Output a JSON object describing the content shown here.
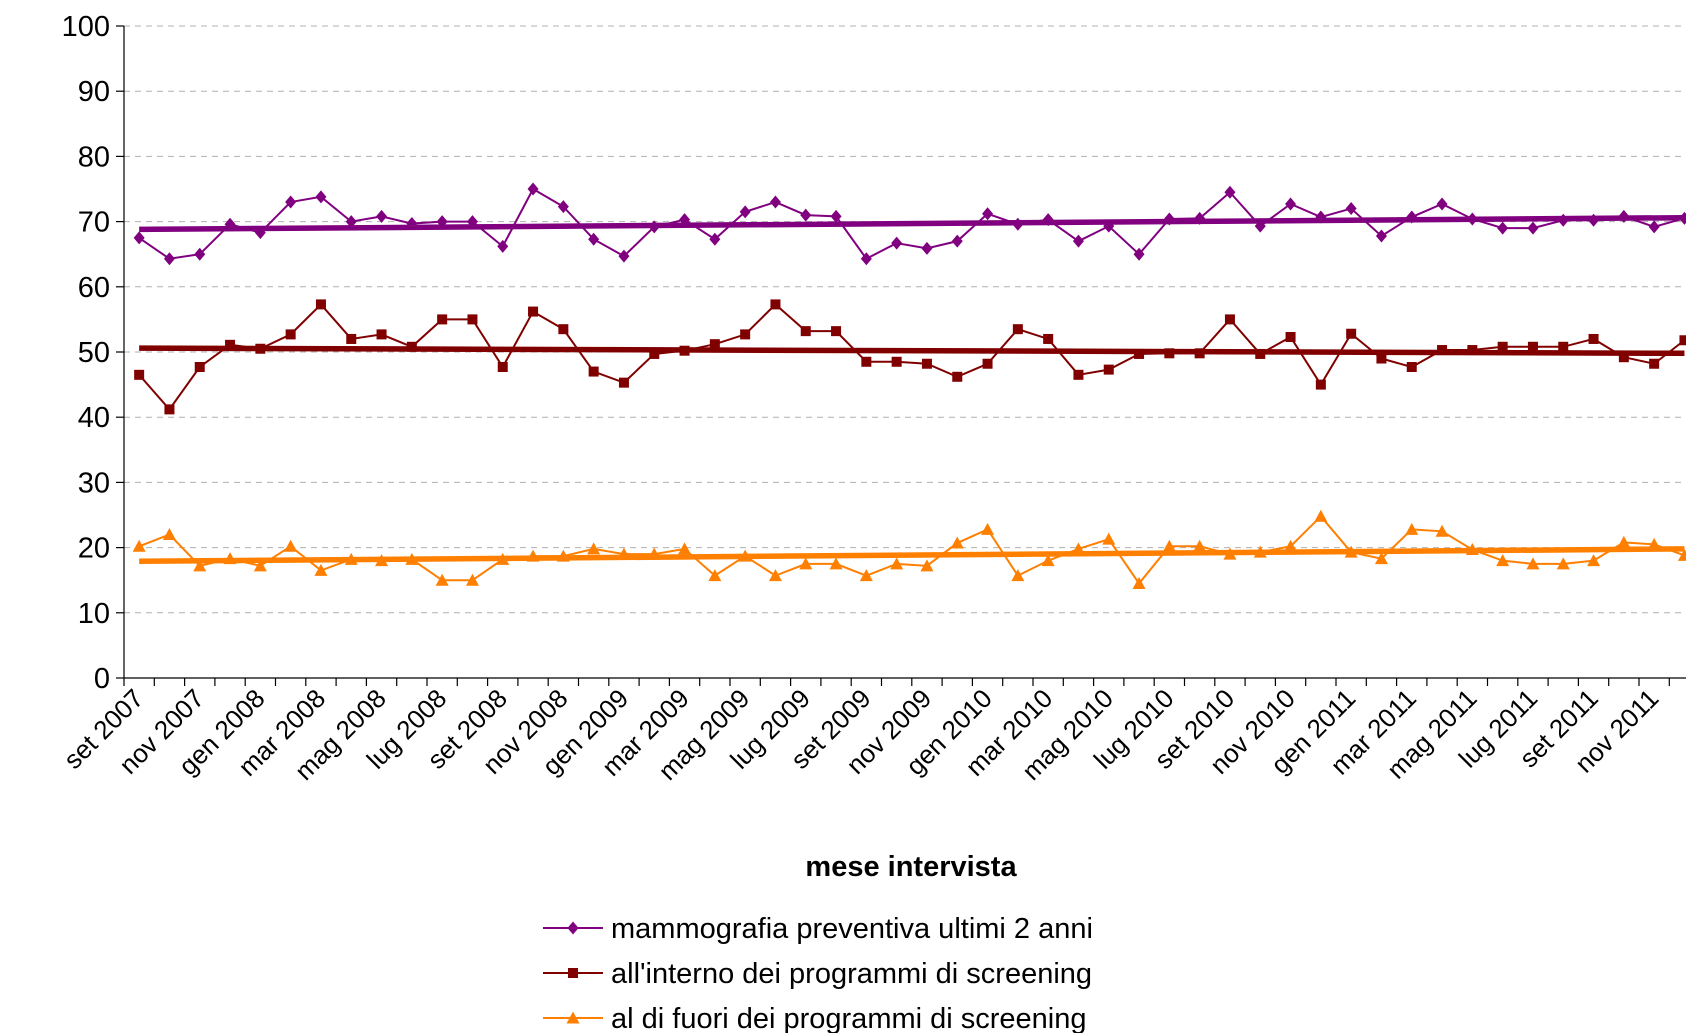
{
  "chart_data": {
    "type": "line",
    "x_label": "mese intervista",
    "categories": [
      "set 2007",
      null,
      "nov 2007",
      null,
      "gen 2008",
      null,
      "mar 2008",
      null,
      "mag 2008",
      null,
      "lug 2008",
      null,
      "set 2008",
      null,
      "nov 2008",
      null,
      "gen 2009",
      null,
      "mar 2009",
      null,
      "mag 2009",
      null,
      "lug 2009",
      null,
      "set 2009",
      null,
      "nov 2009",
      null,
      "gen 2010",
      null,
      "mar 2010",
      null,
      "mag 2010",
      null,
      "lug 2010",
      null,
      "set 2010",
      null,
      "nov 2010",
      null,
      "gen 2011",
      null,
      "mar 2011",
      null,
      "mag 2011",
      null,
      "lug 2011",
      null,
      "set 2011",
      null,
      "nov 2011",
      null
    ],
    "series": [
      {
        "name": "mammografia preventiva ultimi 2 anni",
        "color": "#800080",
        "marker": "diamond",
        "values": [
          67.5,
          64.3,
          65,
          69.6,
          68.3,
          73,
          73.8,
          70,
          70.8,
          69.7,
          70,
          70,
          66.2,
          75,
          72.3,
          67.3,
          64.7,
          69.2,
          70.3,
          67.3,
          71.5,
          73,
          71,
          70.8,
          64.3,
          66.7,
          65.9,
          67,
          71.2,
          69.6,
          70.3,
          67,
          69.3,
          65,
          70.4,
          70.5,
          74.5,
          69.3,
          72.7,
          70.7,
          72,
          67.8,
          70.7,
          72.7,
          70.4,
          69,
          69,
          70.2,
          70.2,
          70.8,
          69.2,
          70.5
        ],
        "trend": [
          68.8,
          70.6
        ]
      },
      {
        "name": "all'interno dei programmi di screening",
        "color": "#800000",
        "marker": "square",
        "values": [
          46.5,
          41.2,
          47.7,
          51.1,
          50.5,
          52.7,
          57.3,
          52,
          52.7,
          50.8,
          55,
          55,
          47.7,
          56.2,
          53.5,
          47,
          45.3,
          49.7,
          50.2,
          51.2,
          52.7,
          57.3,
          53.2,
          53.2,
          48.5,
          48.5,
          48.2,
          46.2,
          48.2,
          53.5,
          52,
          46.5,
          47.3,
          49.7,
          49.8,
          49.8,
          55,
          49.7,
          52.3,
          45,
          52.8,
          49,
          47.7,
          50.3,
          50.3,
          50.8,
          50.8,
          50.8,
          52,
          49.2,
          48.2,
          51.8
        ],
        "trend": [
          50.6,
          49.8
        ]
      },
      {
        "name": "al di fuori dei programmi di screening",
        "color": "#ff7f00",
        "marker": "triangle",
        "values": [
          20.2,
          22,
          17.2,
          18.3,
          17.2,
          20.2,
          16.5,
          18.2,
          18,
          18.2,
          15,
          15,
          18.2,
          18.7,
          18.7,
          19.8,
          19,
          19,
          19.8,
          15.7,
          18.7,
          15.7,
          17.5,
          17.5,
          15.7,
          17.5,
          17.2,
          20.7,
          22.8,
          15.7,
          18,
          19.8,
          21.3,
          14.5,
          20.2,
          20.2,
          19,
          19.3,
          20.2,
          24.8,
          19.3,
          18.3,
          22.8,
          22.5,
          19.7,
          18,
          17.5,
          17.5,
          18,
          20.8,
          20.5,
          18.8
        ],
        "trend": [
          17.9,
          19.8
        ]
      }
    ],
    "ylim": [
      0,
      100
    ],
    "yticks": [
      0,
      10,
      20,
      30,
      40,
      50,
      60,
      70,
      80,
      90,
      100
    ],
    "grid": true
  }
}
